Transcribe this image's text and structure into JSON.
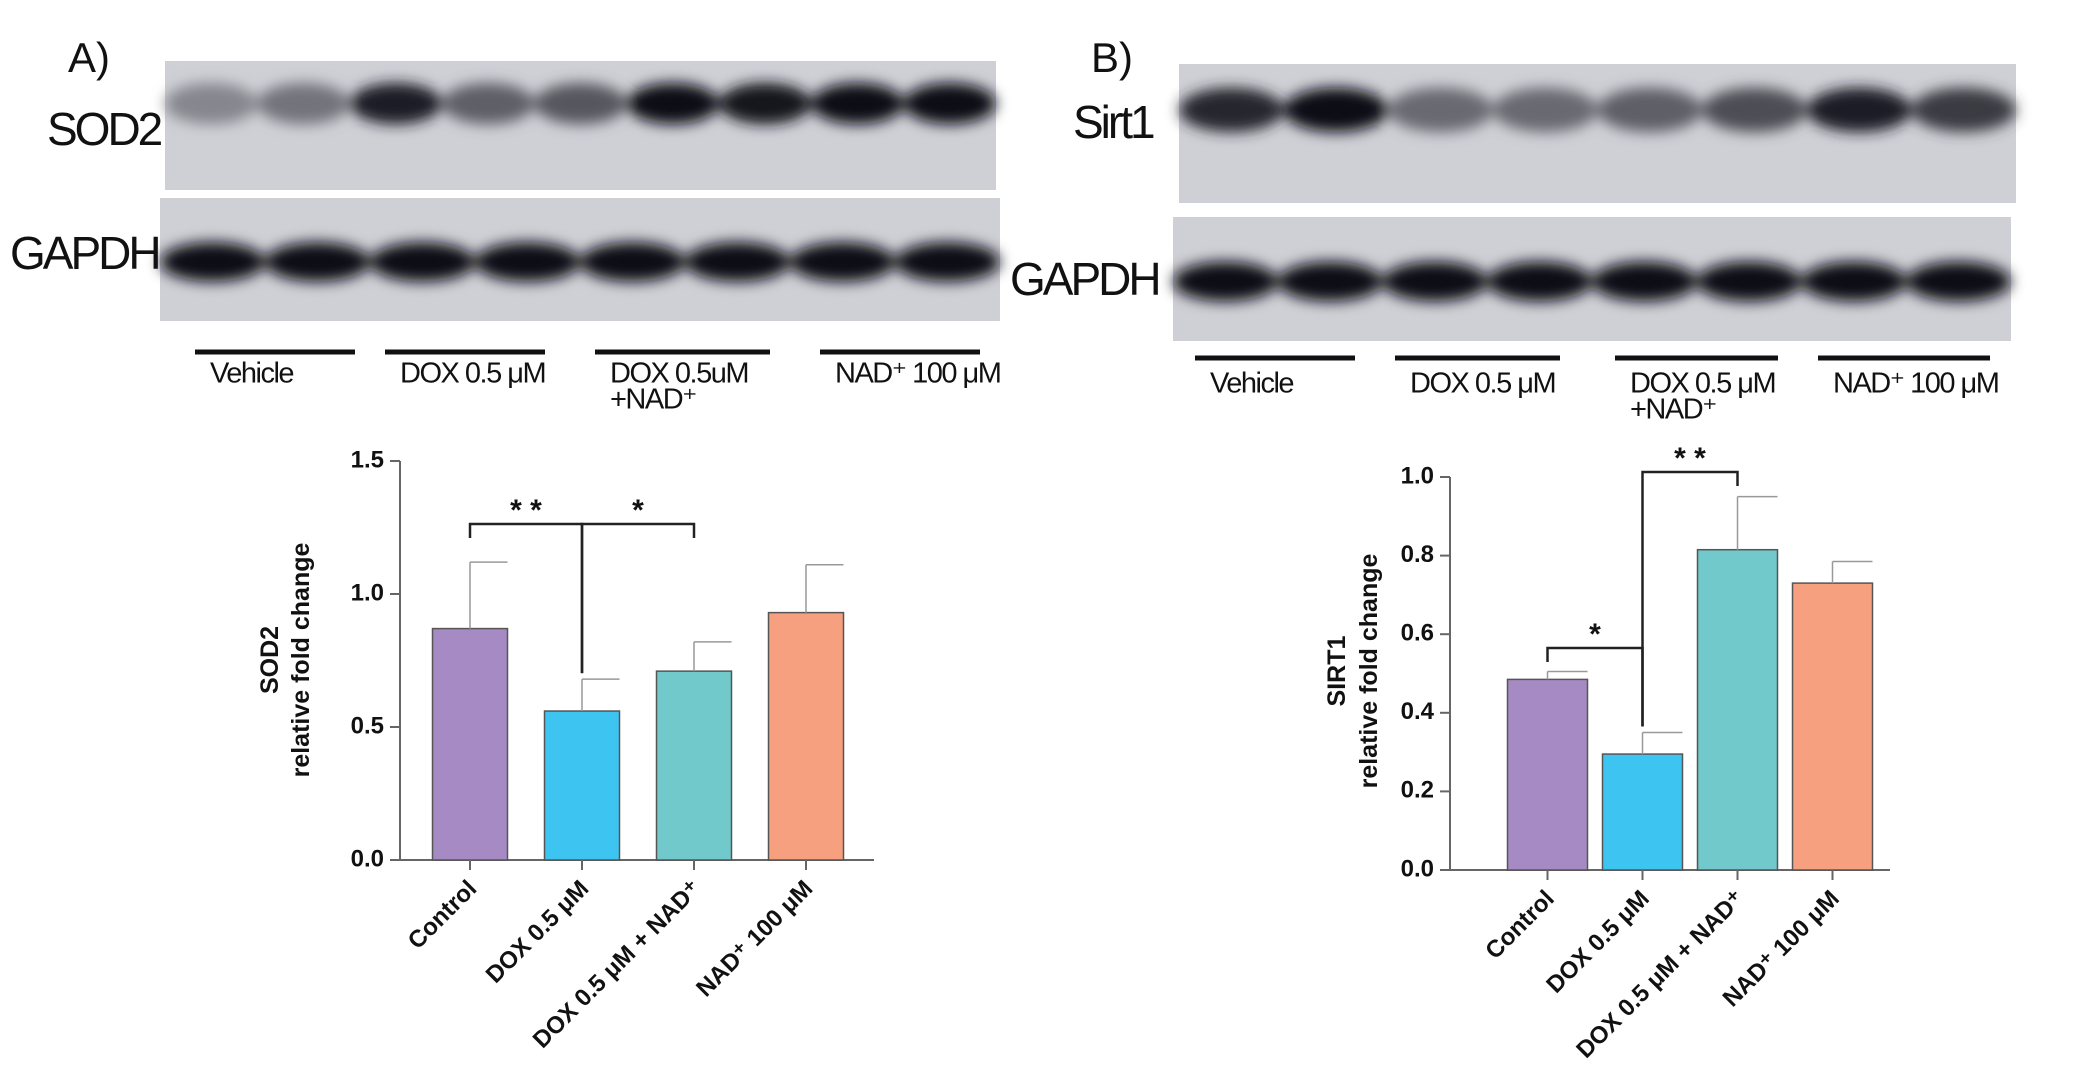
{
  "panels": [
    {
      "label": "A)",
      "rows": [
        "SOD2",
        "GAPDH"
      ],
      "groups": [
        [
          "Vehicle"
        ],
        [
          "DOX 0.5 μM"
        ],
        [
          "DOX 0.5uM",
          "+NAD⁺"
        ],
        [
          "NAD⁺ 100 μM"
        ]
      ]
    },
    {
      "label": "B)",
      "rows": [
        "Sirt1",
        "GAPDH"
      ],
      "groups": [
        [
          "Vehicle"
        ],
        [
          "DOX 0.5 μM"
        ],
        [
          "DOX 0.5 μM",
          "+NAD⁺"
        ],
        [
          "NAD⁺ 100 μM"
        ]
      ]
    }
  ],
  "chart_data": [
    {
      "type": "bar",
      "y_label": [
        "SOD2",
        "relative fold change"
      ],
      "categories": [
        "Control",
        "DOX 0.5 μM",
        "DOX 0.5 μM + NAD⁺",
        "NAD⁺ 100 μM"
      ],
      "values": [
        0.87,
        0.56,
        0.71,
        0.93
      ],
      "errors": [
        0.25,
        0.12,
        0.11,
        0.18
      ],
      "colors": [
        "#a68ac4",
        "#3ec4f1",
        "#72c9cb",
        "#f6a07f"
      ],
      "ylim": [
        0,
        1.5
      ],
      "yticks": [
        {
          "value": 0,
          "label": "0.0"
        },
        {
          "value": 0.5,
          "label": "0.5"
        },
        {
          "value": 1,
          "label": "1.0"
        },
        {
          "value": 1.5,
          "label": "1.5"
        }
      ],
      "annotations": [
        "* *",
        "*"
      ]
    },
    {
      "type": "bar",
      "y_label": [
        "SIRT1",
        "relative fold change"
      ],
      "categories": [
        "Control",
        "DOX 0.5 μM",
        "DOX 0.5 μM + NAD⁺",
        "NAD⁺ 100 μM"
      ],
      "values": [
        0.485,
        0.295,
        0.815,
        0.73
      ],
      "errors": [
        0.02,
        0.055,
        0.135,
        0.055
      ],
      "colors": [
        "#a68ac4",
        "#3ec4f1",
        "#72c9cb",
        "#f6a07f"
      ],
      "ylim": [
        0,
        1
      ],
      "yticks": [
        {
          "value": 0,
          "label": "0.0"
        },
        {
          "value": 0.2,
          "label": "0.2"
        },
        {
          "value": 0.4,
          "label": "0.4"
        },
        {
          "value": 0.6,
          "label": "0.6"
        },
        {
          "value": 0.8,
          "label": "0.8"
        },
        {
          "value": 1,
          "label": "1.0"
        }
      ],
      "annotations": [
        "*",
        "* *"
      ]
    }
  ]
}
